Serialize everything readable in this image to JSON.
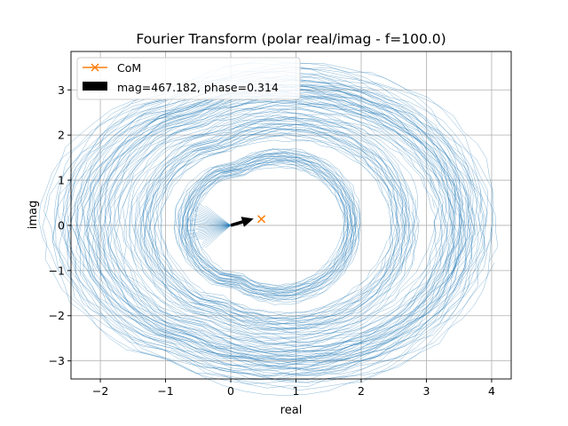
{
  "chart_data": {
    "type": "line",
    "title": "Fourier Transform (polar real/imag - f=100.0)",
    "xlabel": "real",
    "ylabel": "imag",
    "xlim": [
      -2.45,
      4.3
    ],
    "ylim": [
      -3.4,
      3.85
    ],
    "xticks": [
      -2,
      -1,
      0,
      1,
      2,
      3,
      4
    ],
    "yticks": [
      -3,
      -2,
      -1,
      0,
      1,
      2,
      3
    ],
    "xtick_labels": [
      "−2",
      "−1",
      "0",
      "1",
      "2",
      "3",
      "4"
    ],
    "ytick_labels": [
      "−3",
      "−2",
      "−1",
      "0",
      "1",
      "2",
      "3"
    ],
    "grid": true,
    "legend_position": "top-left",
    "series": [
      {
        "name": "",
        "kind": "polar-wrapped signal trace (thin blue lines)",
        "color": "#1f77b4",
        "loops": [
          {
            "cx": 0.8,
            "cy": 0.0,
            "rx": 2.9,
            "ry": 3.2
          },
          {
            "cx": 0.9,
            "cy": 0.0,
            "rx": 2.5,
            "ry": 2.8
          },
          {
            "cx": 0.85,
            "cy": 0.0,
            "rx": 1.8,
            "ry": 2.2
          },
          {
            "cx": 0.75,
            "cy": 0.0,
            "rx": 1.1,
            "ry": 1.5
          }
        ]
      },
      {
        "name": "CoM",
        "kind": "center-of-mass marker",
        "marker": "x",
        "color": "#ff7f0e",
        "x": 0.47,
        "y": 0.14
      },
      {
        "name": "mag=467.182, phase=0.314",
        "kind": "arrow",
        "color": "#000000",
        "x0": 0.0,
        "y0": 0.0,
        "x1": 0.35,
        "y1": 0.15
      }
    ]
  }
}
